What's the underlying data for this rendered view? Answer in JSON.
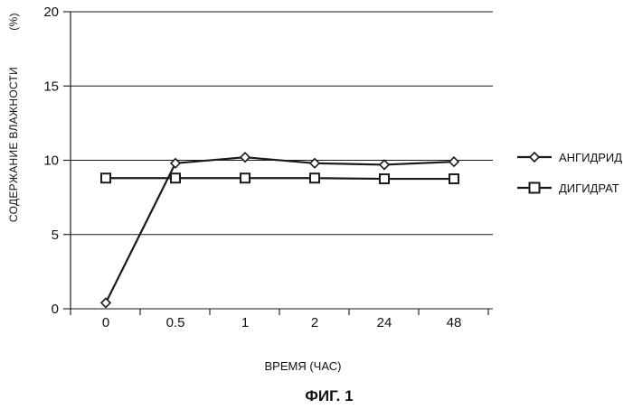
{
  "chart_data": {
    "type": "line",
    "categories": [
      "0",
      "0.5",
      "1",
      "2",
      "24",
      "48"
    ],
    "series": [
      {
        "name": "АНГИДРИД",
        "marker": "diamond",
        "values": [
          0.4,
          9.8,
          10.2,
          9.8,
          9.7,
          9.9
        ]
      },
      {
        "name": "ДИГИДРАТ",
        "marker": "square",
        "values": [
          8.8,
          8.8,
          8.8,
          8.8,
          8.75,
          8.75
        ]
      }
    ],
    "title": "",
    "xlabel": "ВРЕМЯ (ЧАС)",
    "ylabel": "СОДЕРЖАНИЕ ВЛАЖНОСТИ",
    "yunit": "(%)",
    "ylim": [
      0,
      20
    ],
    "yticks": [
      0,
      5,
      10,
      15,
      20
    ],
    "grid": "horizontal",
    "legend": "right",
    "colors": {
      "line": "#1a1a1a",
      "grid": "#1a1a1a",
      "background": "#ffffff"
    }
  },
  "caption": "ФИГ. 1"
}
